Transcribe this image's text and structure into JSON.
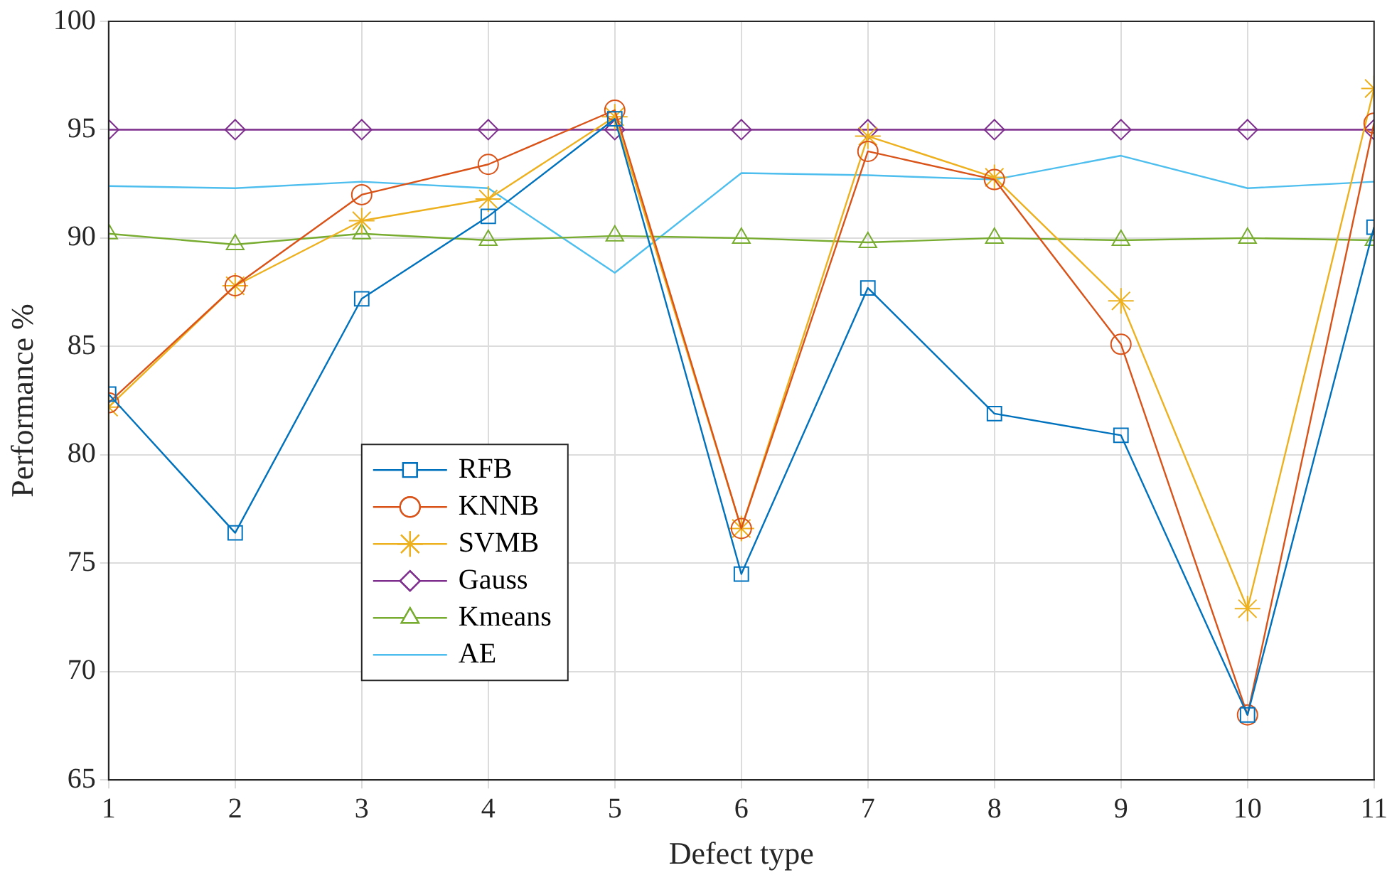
{
  "chart_data": {
    "type": "line",
    "xlabel": "Defect type",
    "ylabel": "Performance %",
    "x": [
      1,
      2,
      3,
      4,
      5,
      6,
      7,
      8,
      9,
      10,
      11
    ],
    "xlim": [
      1,
      11
    ],
    "xticks": [
      1,
      2,
      3,
      4,
      5,
      6,
      7,
      8,
      9,
      10,
      11
    ],
    "ylim": [
      65,
      100
    ],
    "yticks": [
      65,
      70,
      75,
      80,
      85,
      90,
      95,
      100
    ],
    "grid": true,
    "legend": "bottom left",
    "line_style": "solid",
    "series": [
      {
        "name": "RFB",
        "color": "#0072bd",
        "marker": "square",
        "values": [
          82.8,
          76.4,
          87.2,
          91.0,
          95.5,
          74.5,
          87.7,
          81.9,
          80.9,
          68.0,
          90.5
        ]
      },
      {
        "name": "KNNB",
        "color": "#d95319",
        "marker": "circle",
        "values": [
          82.4,
          87.8,
          92.0,
          93.4,
          95.9,
          76.6,
          94.0,
          92.7,
          85.1,
          68.0,
          95.3
        ]
      },
      {
        "name": "SVMB",
        "color": "#edb120",
        "marker": "cross",
        "values": [
          82.2,
          87.8,
          90.8,
          91.8,
          95.6,
          76.6,
          94.7,
          92.8,
          87.1,
          72.9,
          96.9
        ]
      },
      {
        "name": "Gauss",
        "color": "#7e2f8e",
        "marker": "diamond",
        "values": [
          95,
          95,
          95,
          95,
          95,
          95,
          95,
          95,
          95,
          95,
          95
        ]
      },
      {
        "name": "Kmeans",
        "color": "#77ac30",
        "marker": "triangle",
        "values": [
          90.2,
          89.7,
          90.2,
          89.9,
          90.1,
          90.0,
          89.8,
          90.0,
          89.9,
          90.0,
          89.9
        ]
      },
      {
        "name": "AE",
        "color": "#4dbeee",
        "marker": "none",
        "values": [
          92.4,
          92.3,
          92.6,
          92.3,
          88.4,
          93.0,
          92.9,
          92.7,
          93.8,
          92.3,
          92.6
        ]
      }
    ]
  }
}
